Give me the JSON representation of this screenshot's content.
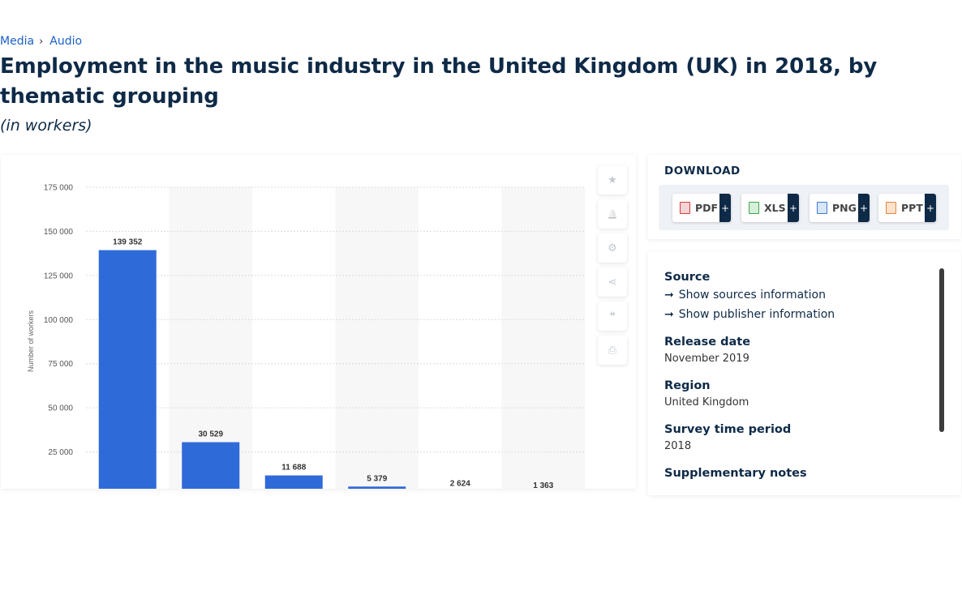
{
  "breadcrumb": {
    "items": [
      "Media",
      "Audio"
    ],
    "separator": "›"
  },
  "page": {
    "title": "Employment in the music industry in the United Kingdom (UK) in 2018, by thematic grouping",
    "subtitle": "(in workers)"
  },
  "chart_data": {
    "type": "bar",
    "ylabel": "Number of workers",
    "xlabel": "",
    "ylim": [
      0,
      175000
    ],
    "yticks": [
      25000,
      50000,
      75000,
      100000,
      125000,
      150000,
      175000
    ],
    "ytick_labels": [
      "25 000",
      "50 000",
      "75 000",
      "100 000",
      "125 000",
      "150 000",
      "175 000"
    ],
    "values": [
      139352,
      30529,
      11688,
      5379,
      2624,
      1363
    ],
    "value_labels": [
      "139 352",
      "30 529",
      "11 688",
      "5 379",
      "2 624",
      "1 363"
    ],
    "bar_color": "#2f6ad9",
    "grid": true,
    "alternating_band_color": "#f7f7f7"
  },
  "tools": {
    "icons": [
      "star-icon",
      "bell-icon",
      "gear-icon",
      "share-icon",
      "quote-icon",
      "print-icon"
    ],
    "glyphs": [
      "★",
      "🔔",
      "⚙",
      "⋖",
      "❝",
      "⎙"
    ]
  },
  "download": {
    "title": "DOWNLOAD",
    "buttons": [
      {
        "label": "PDF",
        "color": "#d93a3a"
      },
      {
        "label": "XLS",
        "color": "#3aa44a"
      },
      {
        "label": "PNG",
        "color": "#3b7bd4"
      },
      {
        "label": "PPT",
        "color": "#e8833a"
      }
    ],
    "plus": "+"
  },
  "info": {
    "source_label": "Source",
    "show_sources": "Show sources information",
    "show_publisher": "Show publisher information",
    "release_label": "Release date",
    "release_value": "November 2019",
    "region_label": "Region",
    "region_value": "United Kingdom",
    "survey_label": "Survey time period",
    "survey_value": "2018",
    "supp_label": "Supplementary notes"
  }
}
